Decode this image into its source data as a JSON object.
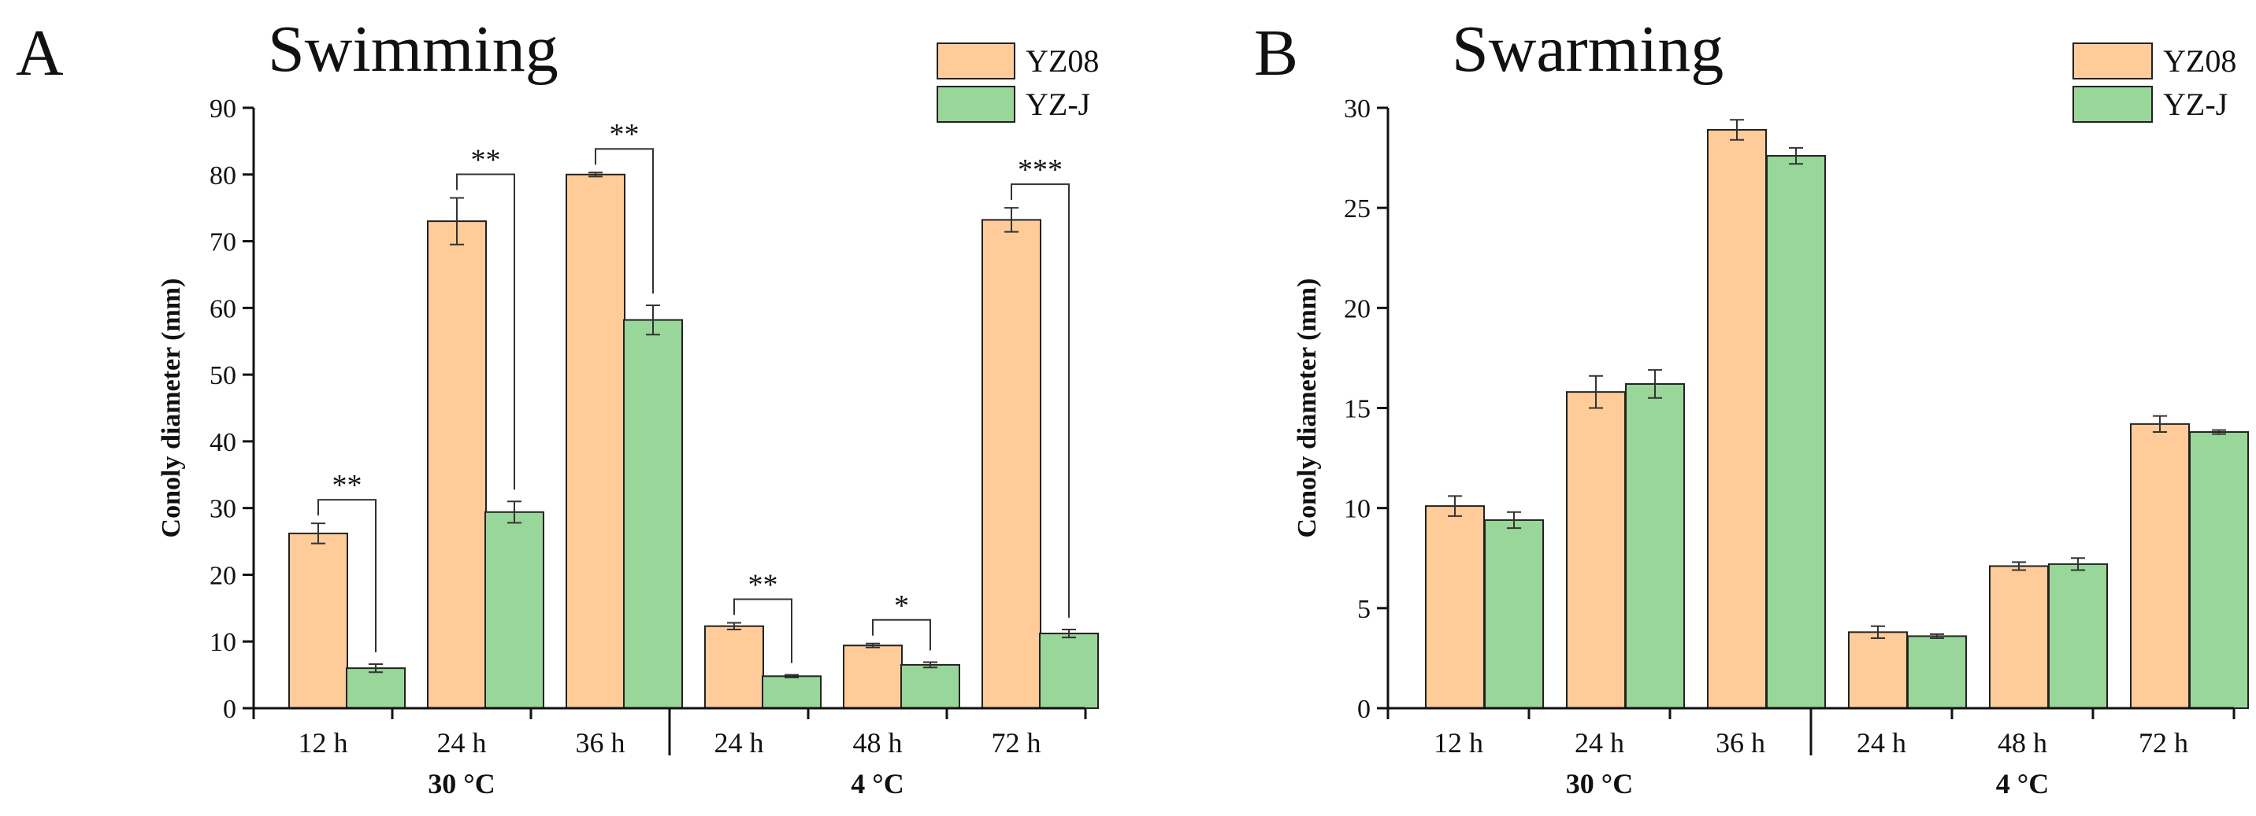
{
  "chart_data": [
    {
      "type": "bar",
      "panel": "A",
      "title": "Swimming",
      "ylabel": "Conoly diameter (mm)",
      "xlabel": "",
      "ylim": [
        0,
        90
      ],
      "yticks": [
        0,
        10,
        20,
        30,
        40,
        50,
        60,
        70,
        80,
        90
      ],
      "categories": [
        "12 h",
        "24 h",
        "36 h",
        "24 h",
        "48 h",
        "72 h"
      ],
      "groups": [
        {
          "label": "30 °C",
          "categories": [
            0,
            1,
            2
          ]
        },
        {
          "label": "4 °C",
          "categories": [
            3,
            4,
            5
          ]
        }
      ],
      "legend_position": "top-right",
      "series": [
        {
          "name": "YZ08",
          "color": "#FFCC99",
          "values": [
            26.2,
            73.0,
            80.0,
            12.3,
            9.4,
            73.2
          ],
          "errors": [
            1.5,
            3.5,
            0.3,
            0.5,
            0.3,
            1.8
          ]
        },
        {
          "name": "YZ-J",
          "color": "#99D699",
          "values": [
            6.0,
            29.4,
            58.2,
            4.8,
            6.5,
            11.2
          ],
          "errors": [
            0.6,
            1.6,
            2.2,
            0.2,
            0.4,
            0.6
          ]
        }
      ],
      "significance": [
        {
          "category": 0,
          "label": "**"
        },
        {
          "category": 1,
          "label": "**"
        },
        {
          "category": 2,
          "label": "**"
        },
        {
          "category": 3,
          "label": "**"
        },
        {
          "category": 4,
          "label": "*"
        },
        {
          "category": 5,
          "label": "***"
        }
      ]
    },
    {
      "type": "bar",
      "panel": "B",
      "title": "Swarming",
      "ylabel": "Conoly diameter (mm)",
      "xlabel": "",
      "ylim": [
        0,
        30
      ],
      "yticks": [
        0,
        5,
        10,
        15,
        20,
        25,
        30
      ],
      "categories": [
        "12 h",
        "24 h",
        "36 h",
        "24 h",
        "48 h",
        "72 h"
      ],
      "groups": [
        {
          "label": "30 °C",
          "categories": [
            0,
            1,
            2
          ]
        },
        {
          "label": "4 °C",
          "categories": [
            3,
            4,
            5
          ]
        }
      ],
      "legend_position": "top-right",
      "series": [
        {
          "name": "YZ08",
          "color": "#FFCC99",
          "values": [
            10.1,
            15.8,
            28.9,
            3.8,
            7.1,
            14.2
          ],
          "errors": [
            0.5,
            0.8,
            0.5,
            0.3,
            0.2,
            0.4
          ]
        },
        {
          "name": "YZ-J",
          "color": "#99D699",
          "values": [
            9.4,
            16.2,
            27.6,
            3.6,
            7.2,
            13.8
          ],
          "errors": [
            0.4,
            0.7,
            0.4,
            0.1,
            0.3,
            0.1
          ]
        }
      ],
      "significance": []
    }
  ]
}
